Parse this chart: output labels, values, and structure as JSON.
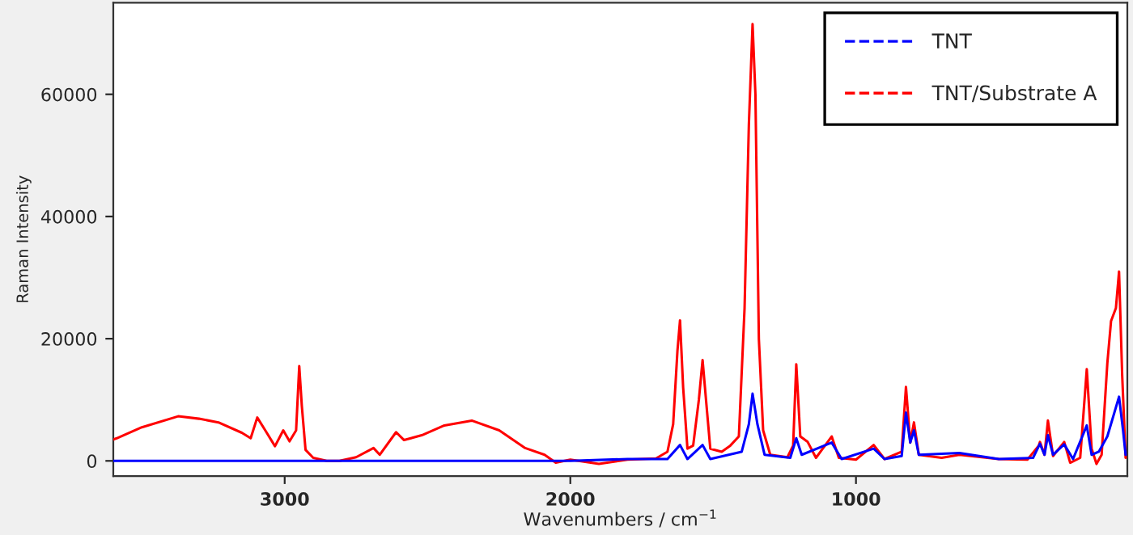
{
  "chart_data": {
    "type": "line",
    "xlabel": "Wavenumbers / cm$^{−1}$",
    "ylabel": "Raman Intensity",
    "xlim": [
      3600,
      50
    ],
    "ylim": [
      -2500,
      75000
    ],
    "xticks": [
      3000,
      2000,
      1000
    ],
    "yticks": [
      0,
      20000,
      40000,
      60000
    ],
    "grid": false,
    "legend": "top right",
    "marker": "none",
    "line_style": "solid",
    "series": [
      {
        "name": "TNT",
        "color": "#0000ff",
        "x": [
          3600,
          2000,
          1800,
          1660,
          1616,
          1590,
          1537,
          1510,
          1400,
          1375,
          1362,
          1345,
          1320,
          1230,
          1209,
          1190,
          1085,
          1050,
          938,
          900,
          840,
          825,
          810,
          797,
          780,
          638,
          500,
          380,
          356,
          340,
          328,
          310,
          271,
          240,
          192,
          175,
          150,
          120,
          79,
          65,
          56
        ],
        "values": [
          0,
          0,
          300,
          300,
          2600,
          300,
          2600,
          300,
          1500,
          6000,
          11000,
          6000,
          1000,
          500,
          3700,
          1000,
          3000,
          300,
          2000,
          300,
          800,
          7900,
          3000,
          5000,
          1000,
          1300,
          300,
          500,
          2800,
          1000,
          4200,
          1000,
          2700,
          300,
          5800,
          1000,
          1500,
          4000,
          10500,
          5000,
          1000
        ]
      },
      {
        "name": "TNT/Substrate A",
        "color": "#ff0000",
        "x": [
          3600,
          3588,
          3500,
          3373,
          3300,
          3232,
          3150,
          3119,
          3096,
          3068,
          3034,
          3005,
          2983,
          2960,
          2949,
          2940,
          2927,
          2900,
          2853,
          2808,
          2750,
          2689,
          2667,
          2610,
          2582,
          2520,
          2441,
          2345,
          2249,
          2158,
          2090,
          2051,
          2000,
          1900,
          1800,
          1700,
          1660,
          1640,
          1625,
          1616,
          1605,
          1590,
          1570,
          1550,
          1537,
          1525,
          1510,
          1470,
          1440,
          1410,
          1390,
          1375,
          1362,
          1352,
          1340,
          1325,
          1300,
          1240,
          1220,
          1209,
          1195,
          1169,
          1140,
          1085,
          1060,
          1000,
          938,
          900,
          840,
          825,
          810,
          797,
          780,
          700,
          638,
          500,
          400,
          360,
          356,
          340,
          328,
          310,
          271,
          250,
          215,
          192,
          175,
          158,
          140,
          120,
          107,
          90,
          79,
          68,
          56
        ],
        "values": [
          3500,
          3700,
          5500,
          7300,
          6900,
          6300,
          4600,
          3700,
          7100,
          5000,
          2400,
          5000,
          3200,
          5000,
          15500,
          9000,
          1800,
          500,
          0,
          0,
          600,
          2100,
          1000,
          4700,
          3400,
          4200,
          5800,
          6600,
          5000,
          2100,
          1000,
          -300,
          200,
          -500,
          200,
          400,
          1500,
          6000,
          18000,
          23000,
          12000,
          2000,
          2500,
          10000,
          16500,
          10000,
          2000,
          1500,
          2500,
          4000,
          25000,
          55000,
          71500,
          60000,
          20000,
          5000,
          1000,
          600,
          2500,
          15800,
          4000,
          3100,
          500,
          4000,
          500,
          200,
          2600,
          300,
          1500,
          12100,
          3000,
          6300,
          1000,
          500,
          1000,
          300,
          200,
          2500,
          3100,
          1000,
          6600,
          800,
          3100,
          -300,
          500,
          15000,
          2000,
          -500,
          1000,
          16000,
          22900,
          25000,
          31000,
          14000,
          500
        ]
      }
    ]
  }
}
